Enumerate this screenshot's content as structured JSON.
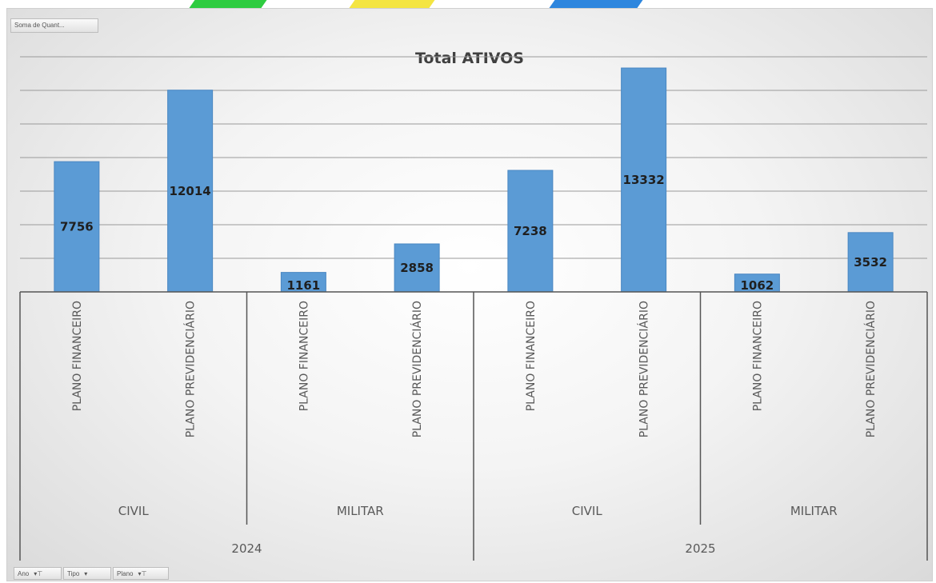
{
  "field_buttons": {
    "values": "Soma de Quant...",
    "filters": [
      {
        "label": "Ano",
        "glyph": "▾⊤"
      },
      {
        "label": "Tipo",
        "glyph": "▾"
      },
      {
        "label": "Plano",
        "glyph": "▾⊤"
      }
    ]
  },
  "colors": {
    "bar": "#5b9bd5",
    "bar_edge": "#4a87c2",
    "label": "#1f1f1f",
    "grid": "#9a9a9a",
    "axis_text": "#595959",
    "strip": [
      "#2ecc40",
      "#f4e542",
      "#2e86de"
    ]
  },
  "chart_data": {
    "type": "bar",
    "title": "Total ATIVOS",
    "ylim": [
      0,
      14000
    ],
    "grid": true,
    "legend": "none",
    "groups": [
      {
        "year": "2024",
        "categories": [
          {
            "name": "CIVIL",
            "plans": [
              {
                "label": "PLANO FINANCEIRO",
                "value": 7756
              },
              {
                "label": "PLANO PREVIDENCIÁRIO",
                "value": 12014
              }
            ]
          },
          {
            "name": "MILITAR",
            "plans": [
              {
                "label": "PLANO FINANCEIRO",
                "value": 1161
              },
              {
                "label": "PLANO PREVIDENCIÁRIO",
                "value": 2858
              }
            ]
          }
        ]
      },
      {
        "year": "2025",
        "categories": [
          {
            "name": "CIVIL",
            "plans": [
              {
                "label": "PLANO FINANCEIRO",
                "value": 7238
              },
              {
                "label": "PLANO PREVIDENCIÁRIO",
                "value": 13332
              }
            ]
          },
          {
            "name": "MILITAR",
            "plans": [
              {
                "label": "PLANO FINANCEIRO",
                "value": 1062
              },
              {
                "label": "PLANO PREVIDENCIÁRIO",
                "value": 3532
              }
            ]
          }
        ]
      }
    ]
  }
}
